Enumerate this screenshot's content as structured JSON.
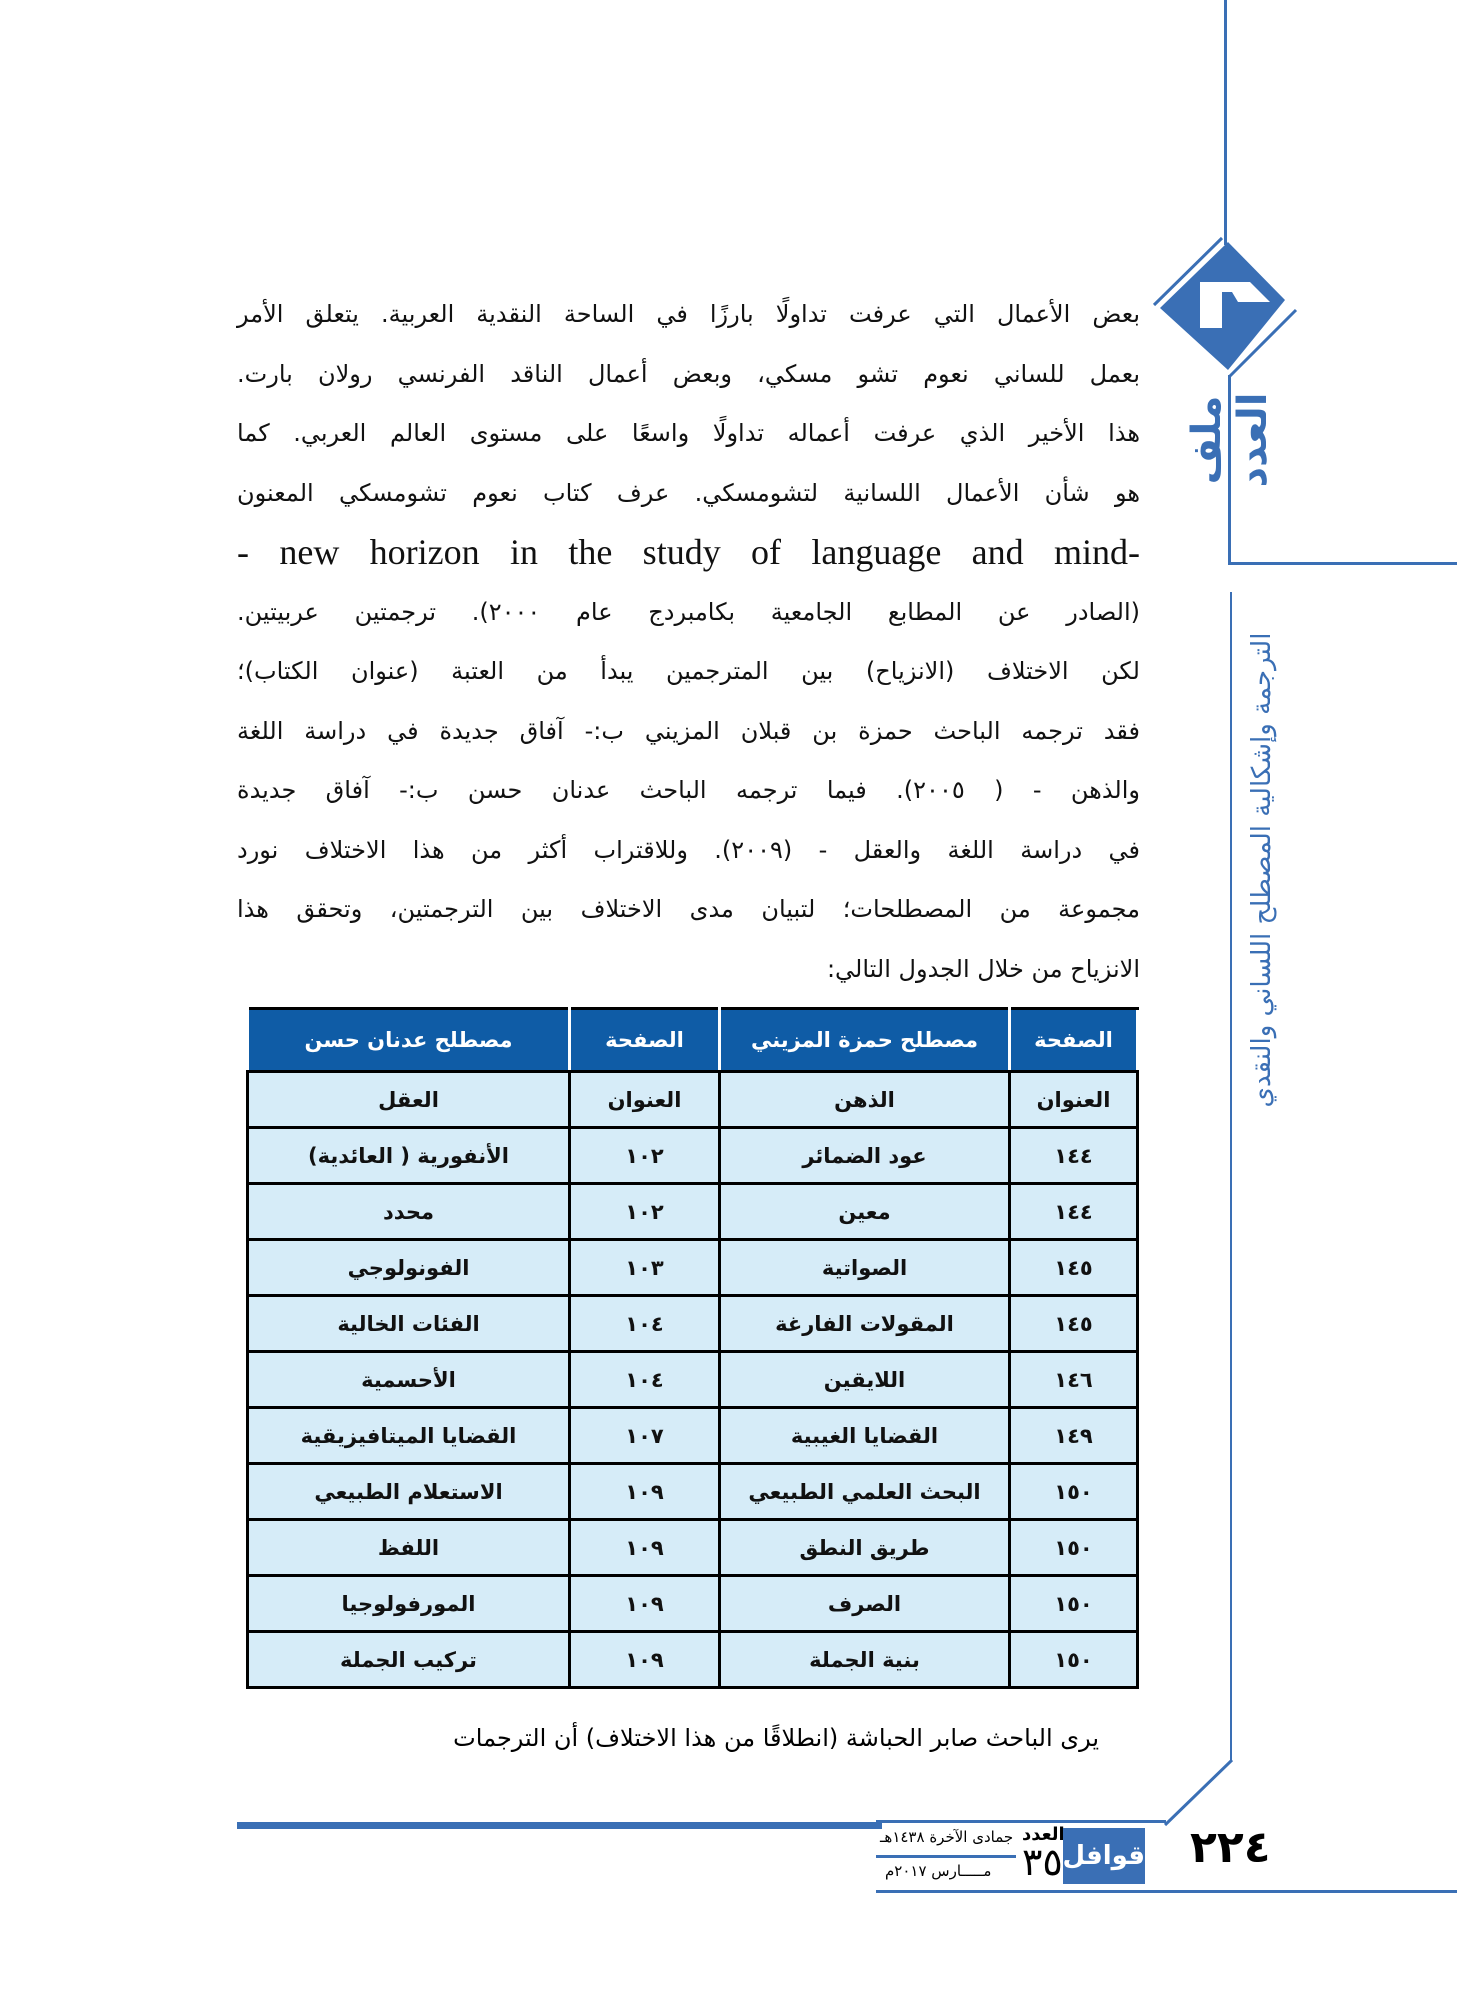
{
  "section": {
    "logo_label": "ملف العدد",
    "vertical_title": "الترجمة وإشكالية المصطلح اللساني والنقدي"
  },
  "body_lines": [
    "بعض الأعمال التي عرفت تداولًا بارزًا في الساحة النقدية العربية. يتعلق الأمر",
    "بعمل للساني نعوم تشو مسكي، وبعض أعمال الناقد الفرنسي رولان بارت.",
    "هذا الأخير الذي عرفت أعماله تداولًا واسعًا على مستوى العالم العربي. كما",
    "هو شأن الأعمال اللسانية لتشومسكي. عرف كتاب نعوم  تشومسكي المعنون",
    "-   new horizon in the study of language and mind-",
    "(الصادر عن المطابع الجامعية بكامبردج عام ٢٠٠٠). ترجمتين عربيتين.",
    "لكن  الاختلاف (الانزياح) بين المترجمين يبدأ من العتبة  (عنوان الكتاب)؛",
    "فقد ترجمه الباحث حمزة بن قبلان المزيني ب:- آفاق جديدة  في دراسة اللغة",
    "والذهن - ( ٢٠٠٥). فيما ترجمه  الباحث عدنان حسن ب:- آفاق جديدة",
    "في دراسة اللغة والعقل - (٢٠٠٩). وللاقتراب أكثر من هذا الاختلاف نورد",
    "مجموعة من المصطلحات؛ لتبيان مدى الاختلاف بين الترجمتين، وتحقق هذا",
    "الانزياح  من خلال الجدول التالي:"
  ],
  "table": {
    "headers": [
      "الصفحة",
      "مصطلح حمزة المزيني",
      "الصفحة",
      "مصطلح عدنان حسن"
    ],
    "rows": [
      [
        "العنوان",
        "الذهن",
        "العنوان",
        "العقل"
      ],
      [
        "١٤٤",
        "عود الضمائر",
        "١٠٢",
        "الأنفورية ( العائدية)"
      ],
      [
        "١٤٤",
        "معين",
        "١٠٢",
        "محدد"
      ],
      [
        "١٤٥",
        "الصواتية",
        "١٠٣",
        "الفونولوجي"
      ],
      [
        "١٤٥",
        "المقولات الفارغة",
        "١٠٤",
        "الفئات الخالية"
      ],
      [
        "١٤٦",
        "اللايقين",
        "١٠٤",
        "الأحسمية"
      ],
      [
        "١٤٩",
        "القضايا الغيبية",
        "١٠٧",
        "القضايا الميتافيزيقية"
      ],
      [
        "١٥٠",
        "البحث العلمي الطبيعي",
        "١٠٩",
        "الاستعلام الطبيعي"
      ],
      [
        "١٥٠",
        "طريق النطق",
        "١٠٩",
        "اللفظ"
      ],
      [
        "١٥٠",
        "الصرف",
        "١٠٩",
        "المورفولوجيا"
      ],
      [
        "١٥٠",
        "بنية الجملة",
        "١٠٩",
        "تركيب الجملة"
      ]
    ]
  },
  "closing_line": "يرى الباحث صابر الحباشة (انطلاقًا من هذا الاختلاف) أن الترجمات",
  "footer": {
    "page_number": "٢٢٤",
    "issue_label": "العدد",
    "issue_number": "٣٥",
    "magazine_logo": "قوافل",
    "hijri_date": "جمادى الآخرة ١٤٣٨هـ",
    "gregorian_date": "مـــــارس ٢٠١٧م"
  },
  "colors": {
    "accent": "#3a6fb5",
    "table_header": "#0f5ca6",
    "table_cell": "#d6ecf8"
  }
}
